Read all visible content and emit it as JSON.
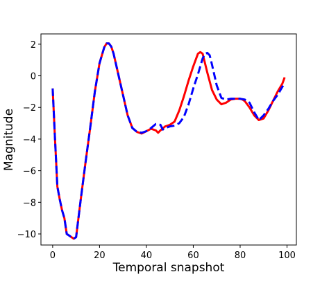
{
  "chart_data": {
    "type": "line",
    "title": "",
    "xlabel": "Temporal snapshot",
    "ylabel": "Magnitude",
    "xlim": [
      -5,
      104
    ],
    "ylim": [
      -10.7,
      2.65
    ],
    "xticks": [
      0,
      20,
      40,
      60,
      80,
      100
    ],
    "yticks": [
      2,
      0,
      -2,
      -4,
      -6,
      -8,
      -10
    ],
    "xtick_labels": [
      "0",
      "20",
      "40",
      "60",
      "80",
      "100"
    ],
    "ytick_labels": [
      "2",
      "0",
      "−2",
      "−4",
      "−6",
      "−8",
      "−10"
    ],
    "grid": false,
    "legend": "none",
    "series": [
      {
        "color": "#ff0000",
        "style": "solid",
        "x": [
          0,
          1,
          2,
          3,
          4,
          5,
          6,
          7,
          8,
          9,
          10,
          12,
          14,
          16,
          18,
          20,
          22,
          23,
          24,
          25,
          26,
          28,
          30,
          32,
          34,
          36,
          38,
          40,
          42,
          44,
          45,
          46,
          48,
          50,
          52,
          54,
          56,
          58,
          60,
          61,
          62,
          63,
          64,
          65,
          66,
          68,
          70,
          72,
          74,
          76,
          78,
          80,
          81,
          82,
          84,
          86,
          88,
          90,
          92,
          94,
          96,
          98,
          99
        ],
        "y": [
          -0.8,
          -4.0,
          -7.0,
          -7.8,
          -8.5,
          -9.0,
          -10.0,
          -10.1,
          -10.2,
          -10.3,
          -10.2,
          -7.8,
          -5.5,
          -3.3,
          -1.0,
          0.8,
          1.8,
          2.05,
          2.05,
          1.85,
          1.4,
          0.1,
          -1.2,
          -2.5,
          -3.3,
          -3.55,
          -3.65,
          -3.5,
          -3.35,
          -3.45,
          -3.6,
          -3.45,
          -3.2,
          -3.1,
          -2.9,
          -2.2,
          -1.3,
          -0.3,
          0.6,
          1.0,
          1.4,
          1.5,
          1.4,
          0.8,
          0.2,
          -0.9,
          -1.5,
          -1.8,
          -1.7,
          -1.5,
          -1.45,
          -1.45,
          -1.5,
          -1.6,
          -2.0,
          -2.5,
          -2.8,
          -2.7,
          -2.2,
          -1.6,
          -1.0,
          -0.5,
          -0.1
        ]
      },
      {
        "color": "#0000ff",
        "style": "dashed",
        "x": [
          0,
          1,
          2,
          3,
          4,
          5,
          6,
          7,
          8,
          9,
          10,
          12,
          14,
          16,
          18,
          20,
          22,
          23,
          24,
          25,
          26,
          28,
          30,
          32,
          34,
          36,
          38,
          40,
          42,
          44,
          46,
          47,
          48,
          50,
          52,
          54,
          56,
          58,
          60,
          62,
          63,
          64,
          65,
          66,
          67,
          68,
          70,
          72,
          74,
          76,
          78,
          80,
          82,
          84,
          86,
          88,
          90,
          92,
          94,
          96,
          98,
          99
        ],
        "y": [
          -0.8,
          -4.0,
          -7.0,
          -7.8,
          -8.5,
          -9.0,
          -10.0,
          -10.1,
          -10.2,
          -10.3,
          -10.2,
          -7.8,
          -5.5,
          -3.3,
          -1.0,
          0.8,
          1.8,
          2.05,
          2.05,
          1.85,
          1.4,
          0.1,
          -1.2,
          -2.5,
          -3.3,
          -3.55,
          -3.6,
          -3.5,
          -3.3,
          -3.05,
          -3.1,
          -3.4,
          -3.3,
          -3.2,
          -3.15,
          -3.0,
          -2.6,
          -1.8,
          -0.8,
          0.1,
          0.6,
          1.1,
          1.4,
          1.45,
          1.3,
          0.7,
          -0.6,
          -1.4,
          -1.5,
          -1.45,
          -1.45,
          -1.45,
          -1.5,
          -1.7,
          -2.3,
          -2.8,
          -2.5,
          -2.1,
          -1.6,
          -1.2,
          -0.7,
          -0.5
        ]
      }
    ]
  }
}
